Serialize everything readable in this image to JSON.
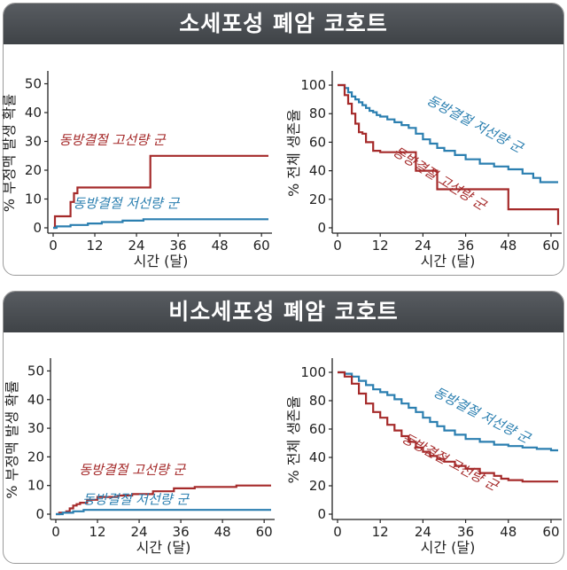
{
  "colors": {
    "high": "#a52a2a",
    "low": "#2b7fb0"
  },
  "panels": [
    {
      "title": "소세포성 폐암 코호트"
    },
    {
      "title": "비소세포성 폐암 코호트"
    }
  ],
  "chart_data": [
    {
      "type": "line",
      "panel": 0,
      "ylabel": "% 부정맥 발생 확률",
      "xlabel": "시간 (달)",
      "xlim": [
        0,
        62
      ],
      "ylim": [
        0,
        52
      ],
      "xticks": [
        0,
        12,
        24,
        36,
        48,
        60
      ],
      "yticks": [
        0,
        10,
        20,
        30,
        40,
        50
      ],
      "series": [
        {
          "name": "동방결절 고선량 군",
          "color": "high",
          "x": [
            0,
            0.5,
            0.5,
            5,
            5,
            6,
            6,
            7,
            7,
            28,
            28,
            62
          ],
          "y": [
            0,
            0,
            4,
            4,
            9,
            9,
            12,
            12,
            14,
            14,
            25,
            25
          ]
        },
        {
          "name": "동방결절 저선량 군",
          "color": "low",
          "x": [
            0,
            1,
            1,
            5,
            5,
            10,
            10,
            14,
            14,
            20,
            20,
            26,
            26,
            62
          ],
          "y": [
            0,
            0,
            0.5,
            0.5,
            1,
            1,
            1.5,
            1.5,
            2,
            2,
            2.5,
            2.5,
            3,
            3
          ]
        }
      ],
      "annotations": [
        {
          "text": "동방결절 고선량 군",
          "series": 0,
          "x": 17,
          "y": 29,
          "rotate": 0
        },
        {
          "text": "동방결절 저선량 군",
          "series": 1,
          "x": 21,
          "y": 7,
          "rotate": 0
        }
      ]
    },
    {
      "type": "line",
      "panel": 0,
      "ylabel": "% 전체 생존율",
      "xlabel": "시간 (달)",
      "xlim": [
        0,
        62
      ],
      "ylim": [
        0,
        105
      ],
      "xticks": [
        0,
        12,
        24,
        36,
        48,
        60
      ],
      "yticks": [
        0,
        20,
        40,
        60,
        80,
        100
      ],
      "series": [
        {
          "name": "동방결절 저선량 군",
          "color": "low",
          "x": [
            0,
            2,
            3,
            4,
            5,
            6,
            7,
            8,
            9,
            10,
            11,
            12,
            14,
            16,
            18,
            20,
            22,
            24,
            26,
            28,
            30,
            33,
            36,
            40,
            44,
            48,
            52,
            55,
            57,
            62
          ],
          "y": [
            100,
            98,
            95,
            92,
            90,
            88,
            86,
            84,
            82,
            81,
            79,
            78,
            76,
            74,
            72,
            70,
            66,
            62,
            59,
            56,
            54,
            51,
            48,
            45,
            43,
            41,
            38,
            35,
            32,
            32
          ]
        },
        {
          "name": "동방결절 고선량 군",
          "color": "high",
          "x": [
            0,
            2,
            3,
            4,
            5,
            6,
            7,
            8,
            10,
            12,
            14,
            17,
            22,
            28,
            33,
            48,
            62
          ],
          "y": [
            100,
            93,
            87,
            80,
            73,
            67,
            66,
            60,
            54,
            53,
            53,
            53,
            40,
            27,
            27,
            13,
            2
          ]
        }
      ],
      "annotations": [
        {
          "text": "동방결절 저선량 군",
          "series": 0,
          "x": 38,
          "y": 70,
          "rotate": 28
        },
        {
          "text": "동방결절 고선량 군",
          "series": 1,
          "x": 28,
          "y": 32,
          "rotate": 32
        }
      ]
    },
    {
      "type": "line",
      "panel": 1,
      "ylabel": "% 부정맥 발생 확률",
      "xlabel": "시간 (달)",
      "xlim": [
        0,
        62
      ],
      "ylim": [
        0,
        52
      ],
      "xticks": [
        0,
        12,
        24,
        36,
        48,
        60
      ],
      "yticks": [
        0,
        10,
        20,
        30,
        40,
        50
      ],
      "series": [
        {
          "name": "동방결절 고선량 군",
          "color": "high",
          "x": [
            0,
            1,
            3,
            4,
            5,
            6,
            7,
            9,
            12,
            18,
            22,
            28,
            34,
            40,
            52,
            62
          ],
          "y": [
            0,
            0.5,
            1,
            2,
            3,
            3.5,
            4,
            5,
            6,
            6.5,
            7,
            8,
            9,
            9.5,
            10,
            10
          ]
        },
        {
          "name": "동방결절 저선량 군",
          "color": "low",
          "x": [
            0,
            2,
            2,
            5,
            5,
            8,
            8,
            62
          ],
          "y": [
            0,
            0,
            0.5,
            0.5,
            1,
            1,
            1.5,
            1.5
          ]
        }
      ],
      "annotations": [
        {
          "text": "동방결절 고선량 군",
          "series": 0,
          "x": 22,
          "y": 14,
          "rotate": 0
        },
        {
          "text": "동방결절 저선량 군",
          "series": 1,
          "x": 23,
          "y": 3.5,
          "rotate": 0
        }
      ]
    },
    {
      "type": "line",
      "panel": 1,
      "ylabel": "% 전체 생존율",
      "xlabel": "시간 (달)",
      "xlim": [
        0,
        62
      ],
      "ylim": [
        0,
        105
      ],
      "xticks": [
        0,
        12,
        24,
        36,
        48,
        60
      ],
      "yticks": [
        0,
        20,
        40,
        60,
        80,
        100
      ],
      "series": [
        {
          "name": "동방결절 저선량 군",
          "color": "low",
          "x": [
            0,
            2,
            4,
            6,
            8,
            10,
            12,
            14,
            16,
            18,
            20,
            22,
            24,
            26,
            28,
            30,
            33,
            36,
            40,
            44,
            48,
            52,
            56,
            60,
            62
          ],
          "y": [
            100,
            99,
            97,
            94,
            91,
            88,
            86,
            84,
            81,
            78,
            75,
            72,
            68,
            65,
            62,
            59,
            56,
            53,
            51,
            49,
            48,
            47,
            46,
            45,
            45
          ]
        },
        {
          "name": "동방결절 고선량 군",
          "color": "high",
          "x": [
            0,
            2,
            4,
            6,
            8,
            10,
            12,
            14,
            16,
            18,
            20,
            22,
            24,
            26,
            28,
            30,
            33,
            36,
            40,
            44,
            46,
            48,
            52,
            56,
            62
          ],
          "y": [
            100,
            97,
            92,
            85,
            78,
            72,
            68,
            63,
            59,
            55,
            51,
            47,
            44,
            41,
            39,
            37,
            34,
            32,
            29,
            27,
            25,
            24,
            23,
            23,
            23
          ]
        }
      ],
      "annotations": [
        {
          "text": "동방결절 저선량 군",
          "series": 0,
          "x": 40,
          "y": 67,
          "rotate": 27
        },
        {
          "text": "동방결절 고선량 군",
          "series": 1,
          "x": 31,
          "y": 34,
          "rotate": 28
        }
      ]
    }
  ]
}
